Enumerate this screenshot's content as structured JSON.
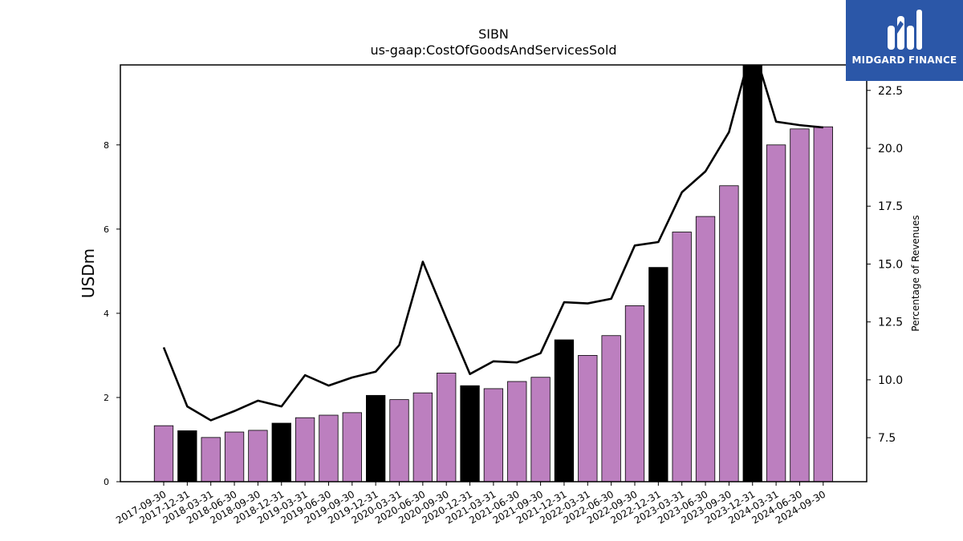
{
  "chart_data": {
    "type": "bar",
    "title": "SIBN",
    "subtitle": "us-gaap:CostOfGoodsAndServicesSold",
    "ylabel": "USDm",
    "y2label": "Percentage of Revenues",
    "ylim": [
      0,
      9.9
    ],
    "y2lim": [
      5.6,
      23.6
    ],
    "yticks": [
      0,
      2,
      4,
      6,
      8
    ],
    "y2ticks": [
      "7.5",
      "10.0",
      "12.5",
      "15.0",
      "17.5",
      "20.0",
      "22.5"
    ],
    "categories": [
      "2017-09-30",
      "2017-12-31",
      "2018-03-31",
      "2018-06-30",
      "2018-09-30",
      "2018-12-31",
      "2019-03-31",
      "2019-06-30",
      "2019-09-30",
      "2019-12-31",
      "2020-03-31",
      "2020-06-30",
      "2020-09-30",
      "2020-12-31",
      "2021-03-31",
      "2021-06-30",
      "2021-09-30",
      "2021-12-31",
      "2022-03-31",
      "2022-06-30",
      "2022-09-30",
      "2022-12-31",
      "2023-03-31",
      "2023-06-30",
      "2023-09-30",
      "2023-12-31",
      "2024-03-31",
      "2024-06-30",
      "2024-09-30"
    ],
    "series": [
      {
        "type": "bar",
        "values": [
          1.33,
          1.21,
          1.05,
          1.18,
          1.22,
          1.39,
          1.52,
          1.58,
          1.64,
          2.05,
          1.95,
          2.11,
          2.58,
          2.28,
          2.21,
          2.38,
          2.48,
          3.37,
          3.0,
          3.47,
          4.18,
          5.09,
          5.93,
          6.3,
          7.03,
          9.95,
          8.0,
          8.38,
          8.43
        ],
        "colors": [
          "#bc7fbf",
          "#000000",
          "#bc7fbf",
          "#bc7fbf",
          "#bc7fbf",
          "#000000",
          "#bc7fbf",
          "#bc7fbf",
          "#bc7fbf",
          "#000000",
          "#bc7fbf",
          "#bc7fbf",
          "#bc7fbf",
          "#000000",
          "#bc7fbf",
          "#bc7fbf",
          "#bc7fbf",
          "#000000",
          "#bc7fbf",
          "#bc7fbf",
          "#bc7fbf",
          "#000000",
          "#bc7fbf",
          "#bc7fbf",
          "#bc7fbf",
          "#000000",
          "#bc7fbf",
          "#bc7fbf",
          "#bc7fbf"
        ]
      },
      {
        "type": "line",
        "axis": "right",
        "values": [
          11.4,
          8.85,
          8.25,
          8.65,
          9.1,
          8.85,
          10.2,
          9.75,
          10.1,
          10.35,
          11.5,
          15.1,
          12.65,
          10.25,
          10.8,
          10.75,
          11.15,
          13.35,
          13.3,
          13.5,
          15.8,
          15.95,
          18.1,
          19.0,
          20.7,
          24.5,
          21.15,
          21.0,
          20.9
        ],
        "color": "#000000"
      }
    ],
    "grid": false
  },
  "logo": {
    "text": "MIDGARD FINANCE",
    "background": "#2b57a8"
  }
}
